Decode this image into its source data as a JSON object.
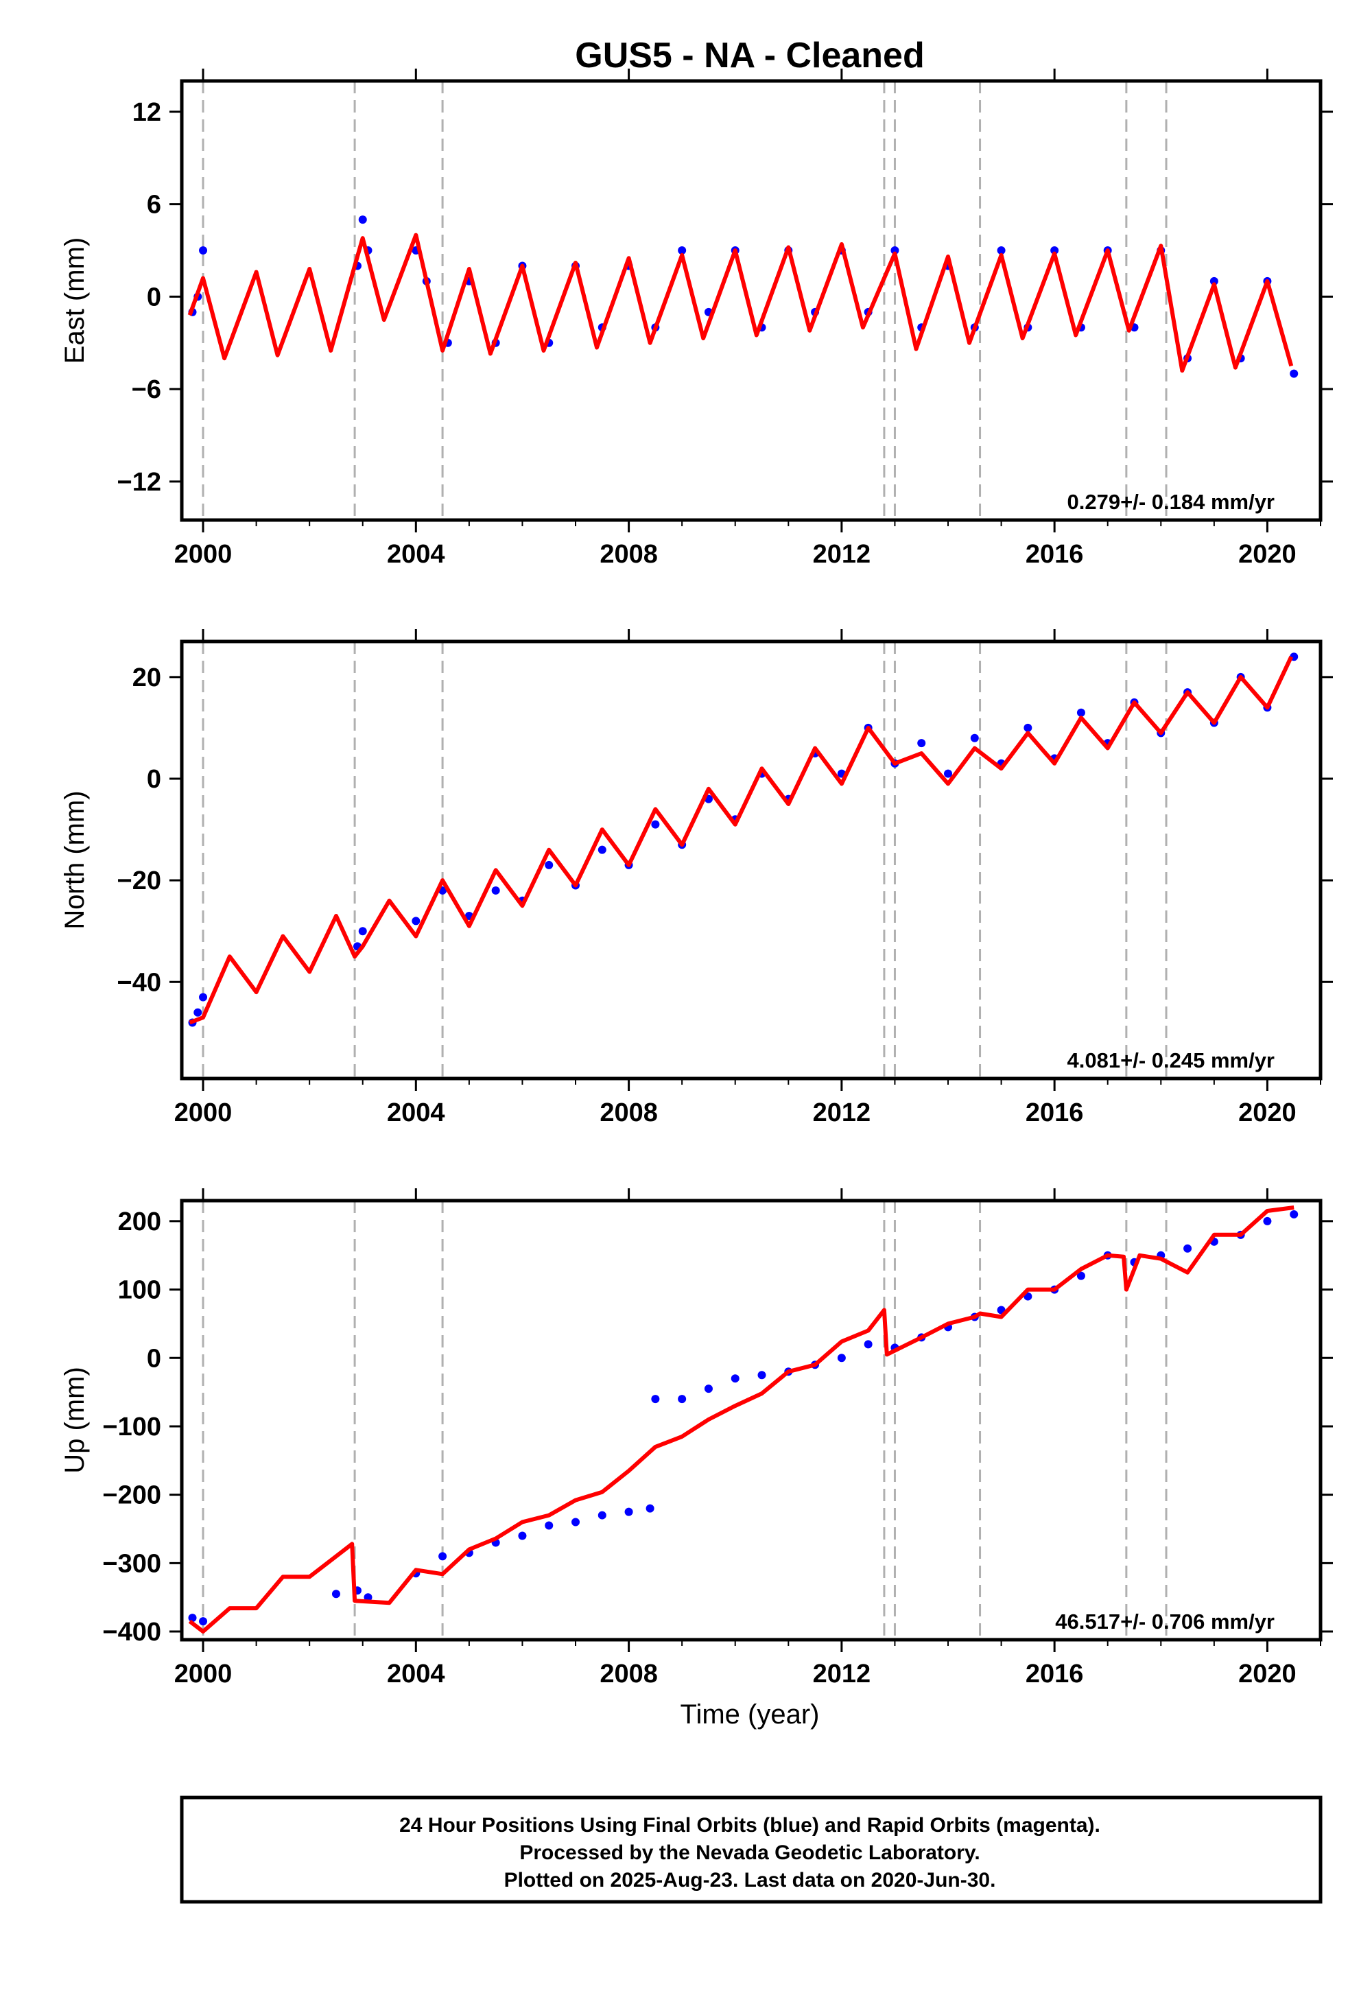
{
  "chart_data": {
    "type": "scatter",
    "title": "GUS5  - NA - Cleaned",
    "xlabel": "Time (year)",
    "xlim": [
      1999.6,
      2021.0
    ],
    "xticks": [
      2000,
      2004,
      2008,
      2012,
      2016,
      2020
    ],
    "discontinuities": [
      2000.0,
      2002.85,
      2004.5,
      2012.8,
      2013.0,
      2014.6,
      2017.35,
      2018.1
    ],
    "colors": {
      "data": "#0000ff",
      "model": "#ff0000",
      "break_lines": "#b0b0b0"
    },
    "grid": false,
    "panels": [
      {
        "name": "east",
        "ylabel": "East (mm)",
        "ylim": [
          -14.5,
          14
        ],
        "yticks": [
          12,
          6,
          0,
          -6,
          -12
        ],
        "ytick_labels": [
          "12",
          "6",
          "0",
          "−6",
          "−12"
        ],
        "rate_text": "0.279+/- 0.184 mm/yr",
        "series": [
          {
            "name": "data",
            "x": [
              1999.8,
              1999.9,
              2000.0,
              2002.9,
              2003.0,
              2003.1,
              2004.0,
              2004.2,
              2004.6,
              2005.0,
              2005.5,
              2006.0,
              2006.5,
              2007.0,
              2007.5,
              2008.0,
              2008.5,
              2009.0,
              2009.5,
              2010.0,
              2010.5,
              2011.0,
              2011.5,
              2012.0,
              2012.5,
              2013.0,
              2013.5,
              2014.0,
              2014.5,
              2015.0,
              2015.5,
              2016.0,
              2016.5,
              2017.0,
              2017.5,
              2018.0,
              2018.5,
              2019.0,
              2019.5,
              2020.0,
              2020.5
            ],
            "y": [
              -1,
              0,
              3,
              2,
              5,
              3,
              3,
              1,
              -3,
              1,
              -3,
              2,
              -3,
              2,
              -2,
              2,
              -2,
              3,
              -1,
              3,
              -2,
              3,
              -1,
              3,
              -1,
              3,
              -2,
              2,
              -2,
              3,
              -2,
              3,
              -2,
              3,
              -2,
              3,
              -4,
              1,
              -4,
              1,
              -5
            ]
          },
          {
            "name": "model",
            "x": [
              1999.75,
              2000.0,
              2000.4,
              2001.0,
              2001.4,
              2002.0,
              2002.4,
              2002.85,
              2003.0,
              2003.4,
              2004.0,
              2004.5,
              2005.0,
              2005.4,
              2006.0,
              2006.4,
              2007.0,
              2007.4,
              2008.0,
              2008.4,
              2009.0,
              2009.4,
              2010.0,
              2010.4,
              2011.0,
              2011.4,
              2012.0,
              2012.4,
              2013.0,
              2013.4,
              2014.0,
              2014.4,
              2015.0,
              2015.4,
              2016.0,
              2016.4,
              2017.0,
              2017.4,
              2018.0,
              2018.4,
              2019.0,
              2019.4,
              2020.0,
              2020.45
            ],
            "y": [
              -1.2,
              1.2,
              -4.0,
              1.6,
              -3.8,
              1.8,
              -3.5,
              2.0,
              3.8,
              -1.5,
              4.0,
              -3.5,
              1.8,
              -3.7,
              2.0,
              -3.5,
              2.2,
              -3.3,
              2.5,
              -3.0,
              2.7,
              -2.7,
              3.0,
              -2.5,
              3.2,
              -2.2,
              3.4,
              -2.0,
              2.8,
              -3.4,
              2.6,
              -3.0,
              2.7,
              -2.7,
              2.8,
              -2.5,
              3.0,
              -2.2,
              3.3,
              -4.8,
              0.8,
              -4.6,
              1.0,
              -4.5
            ]
          }
        ]
      },
      {
        "name": "north",
        "ylabel": "North (mm)",
        "ylim": [
          -59,
          27
        ],
        "yticks": [
          20,
          0,
          -20,
          -40
        ],
        "ytick_labels": [
          "20",
          "0",
          "−20",
          "−40"
        ],
        "rate_text": "4.081+/- 0.245 mm/yr",
        "series": [
          {
            "name": "data",
            "x": [
              1999.8,
              1999.9,
              2000.0,
              2002.9,
              2003.0,
              2004.0,
              2004.5,
              2005.0,
              2005.5,
              2006.0,
              2006.5,
              2007.0,
              2007.5,
              2008.0,
              2008.5,
              2009.0,
              2009.5,
              2010.0,
              2010.5,
              2011.0,
              2011.5,
              2012.0,
              2012.5,
              2013.0,
              2013.5,
              2014.0,
              2014.5,
              2015.0,
              2015.5,
              2016.0,
              2016.5,
              2017.0,
              2017.5,
              2018.0,
              2018.5,
              2019.0,
              2019.5,
              2020.0,
              2020.5
            ],
            "y": [
              -48,
              -46,
              -43,
              -33,
              -30,
              -28,
              -22,
              -27,
              -22,
              -24,
              -17,
              -21,
              -14,
              -17,
              -9,
              -13,
              -4,
              -8,
              1,
              -4,
              5,
              1,
              10,
              3,
              7,
              1,
              8,
              3,
              10,
              4,
              13,
              7,
              15,
              9,
              17,
              11,
              20,
              14,
              24
            ]
          },
          {
            "name": "model",
            "x": [
              1999.75,
              2000.0,
              2000.5,
              2001.0,
              2001.5,
              2002.0,
              2002.5,
              2002.85,
              2003.0,
              2003.5,
              2004.0,
              2004.5,
              2005.0,
              2005.5,
              2006.0,
              2006.5,
              2007.0,
              2007.5,
              2008.0,
              2008.5,
              2009.0,
              2009.5,
              2010.0,
              2010.5,
              2011.0,
              2011.5,
              2012.0,
              2012.5,
              2013.0,
              2013.5,
              2014.0,
              2014.5,
              2015.0,
              2015.5,
              2016.0,
              2016.5,
              2017.0,
              2017.5,
              2018.0,
              2018.5,
              2019.0,
              2019.5,
              2020.0,
              2020.45
            ],
            "y": [
              -48,
              -47,
              -35,
              -42,
              -31,
              -38,
              -27,
              -35,
              -33,
              -24,
              -31,
              -20,
              -29,
              -18,
              -25,
              -14,
              -21,
              -10,
              -17,
              -6,
              -13,
              -2,
              -9,
              2,
              -5,
              6,
              -1,
              10,
              3,
              5,
              -1,
              6,
              2,
              9,
              3,
              12,
              6,
              15,
              9,
              17,
              11,
              20,
              14,
              24
            ]
          }
        ]
      },
      {
        "name": "up",
        "ylabel": "Up (mm)",
        "ylim": [
          -412,
          230
        ],
        "yticks": [
          200,
          100,
          0,
          -100,
          -200,
          -300,
          -400
        ],
        "ytick_labels": [
          "200",
          "100",
          "0",
          "−100",
          "−200",
          "−300",
          "−400"
        ],
        "rate_text": "46.517+/- 0.706 mm/yr",
        "series": [
          {
            "name": "data",
            "x": [
              1999.8,
              2000.0,
              2002.5,
              2002.9,
              2003.1,
              2004.0,
              2004.5,
              2005.0,
              2005.5,
              2006.0,
              2006.5,
              2007.0,
              2007.5,
              2008.0,
              2008.4,
              2008.5,
              2009.0,
              2009.5,
              2010.0,
              2010.5,
              2011.0,
              2011.5,
              2012.0,
              2012.5,
              2013.0,
              2013.5,
              2014.0,
              2014.5,
              2015.0,
              2015.5,
              2016.0,
              2016.5,
              2017.0,
              2017.5,
              2018.0,
              2018.5,
              2019.0,
              2019.5,
              2020.0,
              2020.5
            ],
            "y": [
              -380,
              -385,
              -345,
              -340,
              -350,
              -315,
              -290,
              -285,
              -270,
              -260,
              -245,
              -240,
              -230,
              -225,
              -220,
              -60,
              -60,
              -45,
              -30,
              -25,
              -20,
              -10,
              0,
              20,
              15,
              30,
              45,
              60,
              70,
              90,
              100,
              120,
              150,
              140,
              150,
              160,
              170,
              180,
              200,
              210
            ]
          },
          {
            "name": "model",
            "x": [
              1999.75,
              2000.0,
              2000.5,
              2001.0,
              2001.5,
              2002.0,
              2002.5,
              2002.8,
              2002.85,
              2003.5,
              2004.0,
              2004.5,
              2005.0,
              2005.5,
              2006.0,
              2006.5,
              2007.0,
              2007.5,
              2008.0,
              2008.5,
              2009.0,
              2009.5,
              2010.0,
              2010.5,
              2011.0,
              2011.5,
              2012.0,
              2012.5,
              2012.8,
              2012.85,
              2013.5,
              2014.0,
              2014.5,
              2014.6,
              2015.0,
              2015.5,
              2016.0,
              2016.5,
              2017.0,
              2017.3,
              2017.35,
              2017.6,
              2018.0,
              2018.5,
              2019.0,
              2019.5,
              2020.0,
              2020.5
            ],
            "y": [
              -385,
              -400,
              -366,
              -366,
              -320,
              -320,
              -290,
              -272,
              -355,
              -358,
              -310,
              -316,
              -280,
              -264,
              -240,
              -230,
              -208,
              -196,
              -165,
              -130,
              -115,
              -90,
              -70,
              -52,
              -20,
              -10,
              24,
              40,
              70,
              5,
              30,
              50,
              60,
              65,
              60,
              100,
              100,
              130,
              150,
              148,
              100,
              150,
              145,
              125,
              180,
              180,
              215,
              220
            ]
          }
        ]
      }
    ]
  },
  "footer": {
    "line1": "24 Hour Positions Using Final Orbits (blue) and Rapid Orbits (magenta).",
    "line2": "Processed by the Nevada Geodetic Laboratory.",
    "line3": "Plotted on 2025-Aug-23. Last data on 2020-Jun-30."
  }
}
